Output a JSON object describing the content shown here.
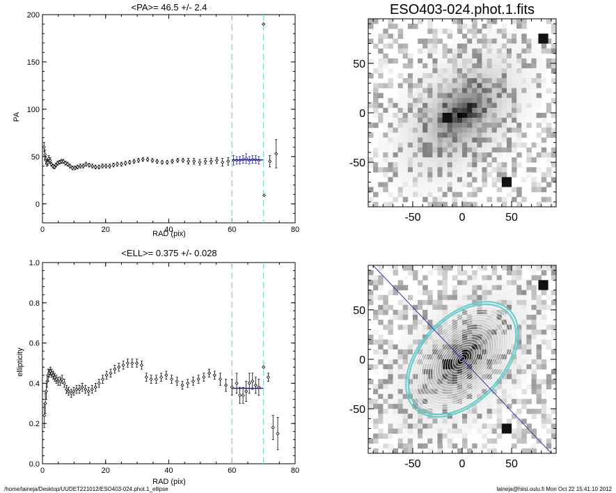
{
  "footer": {
    "left": "/home/laineja/Desktop/UUDET221012/ESO403-024.phot.1_ellipse",
    "right": "laineja@hiisi.oulu.fi  Mon Oct 22 15:41:10 2012"
  },
  "colors": {
    "dashed_lines": "#7fdada",
    "fit_line": "#1a1aa8",
    "contour_outer": "#66cccc",
    "major_axis": "#3333aa"
  },
  "chart_data": [
    {
      "type": "scatter",
      "title": "<PA>=  46.5 +/-   2.4",
      "xlabel": "RAD (pix)",
      "ylabel": "PA",
      "xlim": [
        0,
        80
      ],
      "ylim": [
        -20,
        200
      ],
      "xticks": [
        "0",
        "20",
        "40",
        "60",
        "80"
      ],
      "yticks": [
        "0",
        "50",
        "100",
        "150",
        "200"
      ],
      "vlines": [
        60,
        70
      ],
      "fit": {
        "value": 46.5,
        "x_range": [
          60,
          70
        ]
      },
      "series": [
        {
          "x": [
            0.5,
            0.8,
            1.1,
            1.4,
            1.7,
            2,
            2.4,
            2.8,
            3.3,
            3.8,
            4.3,
            4.8,
            5.4,
            6,
            6.6,
            7.3,
            8,
            8.7,
            9.5,
            10.3,
            11.1,
            12,
            12.9,
            13.8,
            14.8,
            15.8,
            16.8,
            17.9,
            19,
            20.1,
            21.3,
            22.5,
            23.7,
            25,
            26.3,
            27.6,
            29,
            30.4,
            31.8,
            33.3,
            34.8,
            36.3,
            37.9,
            39.5,
            41.1,
            42.8,
            44.5,
            46.2,
            48,
            49.8,
            51.6,
            53.4,
            55.2,
            57,
            58.8,
            60.5,
            61.5,
            62.5,
            63.5,
            64.5,
            65.5,
            66.5,
            67.5,
            68.5,
            70,
            70.2,
            72,
            74
          ],
          "y": [
            60,
            52,
            46,
            43,
            44,
            48,
            46,
            42,
            40,
            39,
            41,
            43,
            44,
            45,
            45,
            43,
            42,
            40,
            38,
            38,
            39,
            40,
            40,
            42,
            41,
            40,
            39,
            39,
            40,
            40,
            40,
            41,
            42,
            42,
            43,
            44,
            45,
            46,
            47,
            47,
            46,
            45,
            44,
            44,
            45,
            46,
            46,
            45,
            45,
            44,
            45,
            45,
            46,
            44,
            45,
            46,
            46,
            46,
            47,
            48,
            46,
            47,
            47,
            46,
            190,
            9,
            45,
            53
          ],
          "err": [
            5,
            5,
            4,
            3,
            3,
            3,
            3,
            2,
            2,
            2,
            2,
            2,
            2,
            2,
            2,
            2,
            2,
            2,
            2,
            2,
            2,
            2,
            2,
            2,
            2,
            2,
            2,
            2,
            2,
            2,
            2,
            2,
            2,
            2,
            2,
            2,
            2,
            2,
            2,
            2,
            2,
            2,
            2,
            2,
            2,
            2,
            2,
            3,
            3,
            3,
            3,
            3,
            3,
            4,
            4,
            5,
            4,
            4,
            4,
            5,
            4,
            4,
            4,
            4,
            0,
            0,
            6,
            15
          ]
        }
      ]
    },
    {
      "type": "scatter",
      "title": "<ELL>= 0.375 +/-  0.028",
      "xlabel": "RAD (pix)",
      "ylabel": "ellipticity",
      "xlim": [
        0,
        80
      ],
      "ylim": [
        0,
        1
      ],
      "xticks": [
        "0",
        "20",
        "40",
        "60",
        "80"
      ],
      "yticks": [
        "0.0",
        "0.2",
        "0.4",
        "0.6",
        "0.8",
        "1.0"
      ],
      "vlines": [
        60,
        70
      ],
      "fit": {
        "value": 0.375,
        "x_range": [
          60,
          70
        ]
      },
      "series": [
        {
          "x": [
            0.6,
            0.9,
            1.2,
            1.5,
            1.8,
            2.1,
            2.5,
            2.9,
            3.4,
            3.9,
            4.4,
            5,
            5.6,
            6.2,
            6.9,
            7.6,
            8.3,
            9.1,
            9.9,
            10.8,
            11.7,
            12.6,
            13.6,
            14.6,
            15.7,
            16.8,
            17.9,
            19.1,
            20.3,
            21.6,
            22.9,
            24.2,
            25.6,
            27,
            28.4,
            29.9,
            31.4,
            32.9,
            34.4,
            36,
            37.6,
            39.2,
            40.9,
            42.6,
            44.3,
            46,
            47.7,
            49.4,
            51.1,
            52.8,
            54.5,
            56.3,
            58.1,
            60,
            61.5,
            62.5,
            63.5,
            64.5,
            65.5,
            66.5,
            67.5,
            68.5,
            70,
            71.5,
            73,
            74.5
          ],
          "y": [
            0.24,
            0.3,
            0.36,
            0.41,
            0.44,
            0.45,
            0.46,
            0.45,
            0.44,
            0.43,
            0.42,
            0.41,
            0.41,
            0.42,
            0.4,
            0.37,
            0.36,
            0.35,
            0.36,
            0.37,
            0.37,
            0.38,
            0.37,
            0.36,
            0.37,
            0.38,
            0.4,
            0.42,
            0.44,
            0.45,
            0.47,
            0.48,
            0.49,
            0.5,
            0.5,
            0.5,
            0.49,
            0.43,
            0.42,
            0.42,
            0.43,
            0.44,
            0.42,
            0.41,
            0.39,
            0.4,
            0.41,
            0.42,
            0.43,
            0.45,
            0.44,
            0.42,
            0.39,
            0.38,
            0.4,
            0.34,
            0.34,
            0.36,
            0.4,
            0.41,
            0.39,
            0.38,
            0.48,
            0.43,
            0.18,
            0.15
          ],
          "err": [
            0.06,
            0.05,
            0.04,
            0.03,
            0.03,
            0.02,
            0.02,
            0.02,
            0.02,
            0.02,
            0.02,
            0.02,
            0.02,
            0.02,
            0.02,
            0.02,
            0.02,
            0.02,
            0.02,
            0.02,
            0.02,
            0.02,
            0.02,
            0.02,
            0.02,
            0.02,
            0.02,
            0.02,
            0.02,
            0.02,
            0.02,
            0.02,
            0.02,
            0.02,
            0.02,
            0.02,
            0.02,
            0.02,
            0.02,
            0.02,
            0.02,
            0.02,
            0.02,
            0.02,
            0.02,
            0.02,
            0.02,
            0.02,
            0.02,
            0.02,
            0.02,
            0.03,
            0.03,
            0.04,
            0.05,
            0.04,
            0.04,
            0.05,
            0.05,
            0.04,
            0.04,
            0.04,
            0,
            0.02,
            0.06,
            0.08
          ]
        }
      ]
    },
    {
      "type": "heatmap",
      "title": "ESO403-024.phot.1.fits",
      "xlim": [
        -95,
        95
      ],
      "ylim": [
        -95,
        95
      ],
      "xticks": [
        "-50",
        "0",
        "50"
      ],
      "yticks": [
        "-50",
        "0",
        "50"
      ]
    },
    {
      "type": "heatmap",
      "title": "",
      "xlim": [
        -95,
        95
      ],
      "ylim": [
        -95,
        95
      ],
      "xticks": [
        "-50",
        "0",
        "50"
      ],
      "yticks": [
        "-50",
        "0",
        "50"
      ],
      "ellipse_overlay": {
        "pa_deg": 46.5,
        "ellipticity": 0.375,
        "max_radius": 70
      }
    }
  ]
}
